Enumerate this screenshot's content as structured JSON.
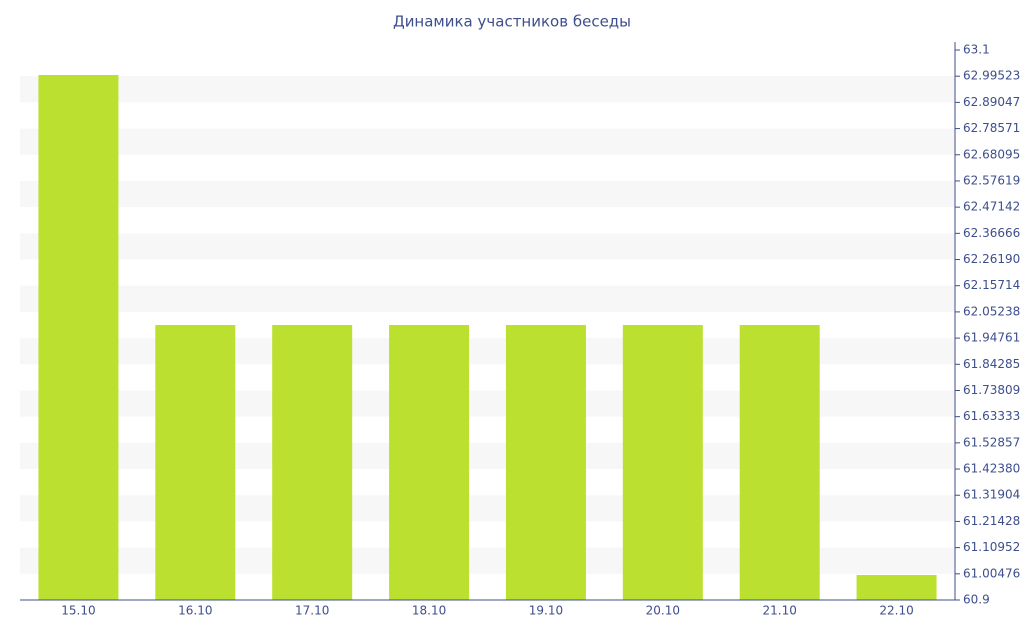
{
  "chart_data": {
    "type": "bar",
    "title": "Динамика участников беседы",
    "categories": [
      "15.10",
      "16.10",
      "17.10",
      "18.10",
      "19.10",
      "20.10",
      "21.10",
      "22.10"
    ],
    "values": [
      63,
      62,
      62,
      62,
      62,
      62,
      62,
      61
    ],
    "color": "#bce02f",
    "ylim": [
      60.9,
      63.1
    ],
    "yticks": [
      60.9,
      61.00476,
      61.10952,
      61.21428,
      61.31904,
      {
        "value": 61.4238,
        "label": "61.42380"
      },
      61.52857,
      61.63333,
      61.73809,
      61.84285,
      61.94761,
      62.05238,
      62.15714,
      {
        "value": 62.2619,
        "label": "62.26190"
      },
      62.36666,
      62.47142,
      62.57619,
      62.68095,
      62.78571,
      62.89047,
      62.99523,
      63.1
    ],
    "grid": true
  }
}
